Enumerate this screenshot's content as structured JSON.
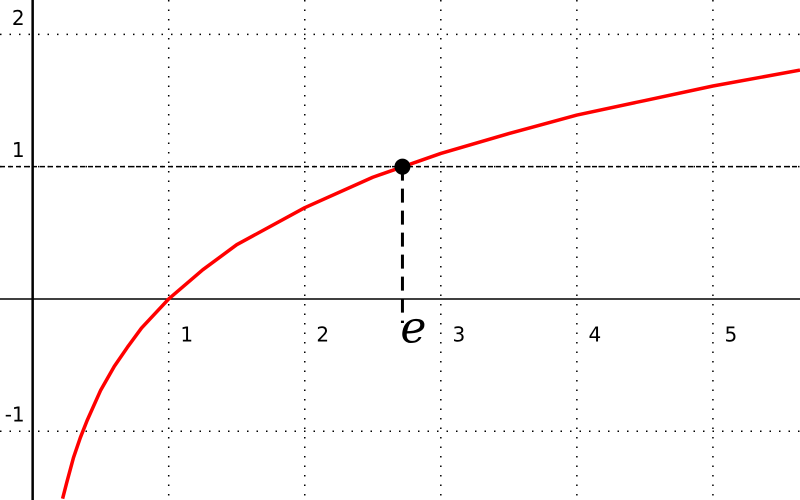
{
  "chart_data": {
    "type": "line",
    "x": [
      0.22,
      0.25,
      0.3,
      0.35,
      0.4,
      0.5,
      0.6,
      0.7,
      0.8,
      1,
      1.25,
      1.5,
      2,
      2.5,
      3,
      3.5,
      4,
      4.5,
      5,
      5.64
    ],
    "values": [
      -1.51,
      -1.39,
      -1.2,
      -1.05,
      -0.92,
      -0.69,
      -0.51,
      -0.36,
      -0.22,
      0,
      0.22,
      0.41,
      0.69,
      0.92,
      1.1,
      1.25,
      1.39,
      1.5,
      1.61,
      1.73
    ],
    "color": "#ff0000",
    "xlim": [
      -0.24,
      5.64
    ],
    "ylim": [
      -1.52,
      2.26
    ],
    "xticks": [
      1,
      2,
      3,
      4,
      5
    ],
    "yticks": [
      -1,
      1,
      2
    ],
    "grid": true,
    "highlight": {
      "x": 2.718,
      "y": 1,
      "label": "e",
      "color": "#000000"
    }
  }
}
